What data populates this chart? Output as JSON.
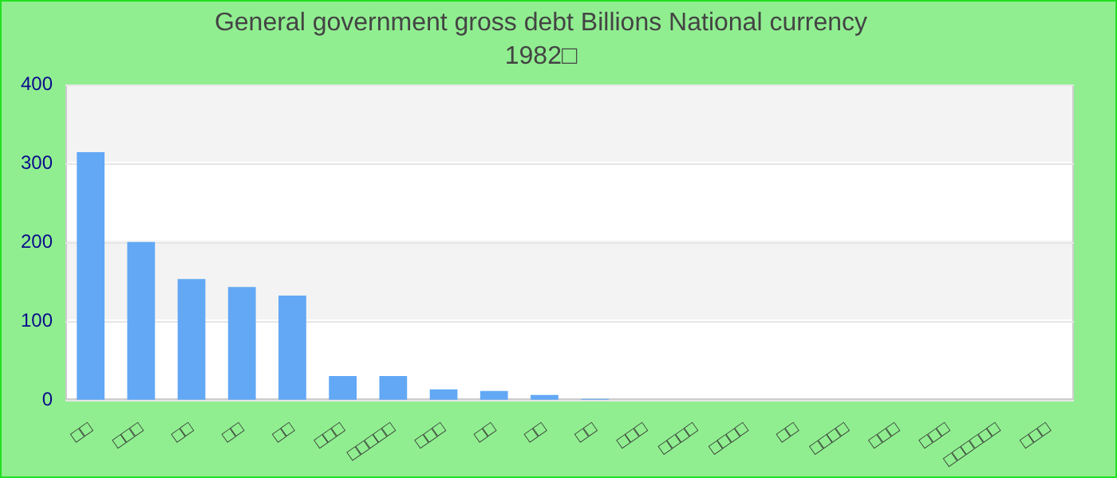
{
  "chart_data": {
    "type": "bar",
    "title": "General government gross debt Billions National currency",
    "subtitle": "1982□",
    "categories": [
      "□□",
      "□□□",
      "□□",
      "□□",
      "□□",
      "□□□",
      "□□□□□",
      "□□□",
      "□□",
      "□□",
      "□□",
      "□□□",
      "□□□□",
      "□□□□",
      "□□",
      "□□□□",
      "□□□",
      "□□□",
      "□□□□□□",
      "□□□"
    ],
    "values": [
      315,
      201,
      154,
      144,
      133,
      31,
      31,
      14,
      12,
      7,
      2,
      0,
      0,
      0,
      0,
      0,
      0,
      0,
      0,
      0
    ],
    "color": "#62a8f5",
    "ylim": [
      0,
      400
    ],
    "yticks": [
      0,
      100,
      200,
      300,
      400
    ],
    "grid": "y"
  }
}
